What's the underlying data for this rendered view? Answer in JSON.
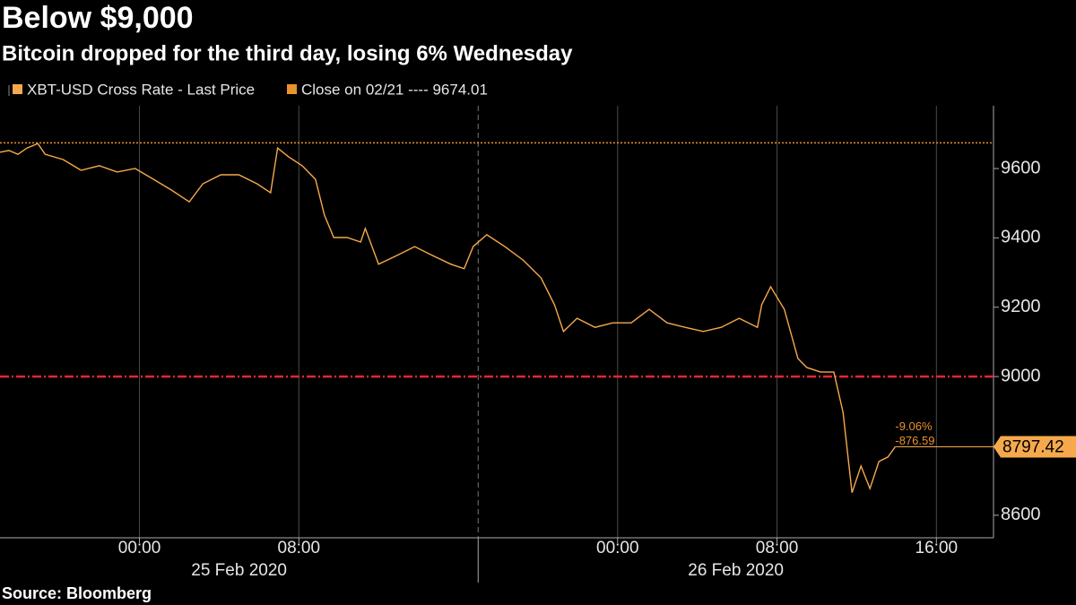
{
  "chart_data": {
    "type": "line",
    "title": "Below $9,000",
    "subtitle": "Bitcoin dropped for the third day, losing 6% Wednesday",
    "source": "Source: Bloomberg",
    "x": [
      "2020-02-24T17:00",
      "2020-02-24T17:27",
      "2020-02-24T17:54",
      "2020-02-24T18:21",
      "2020-02-24T18:54",
      "2020-02-24T19:16",
      "2020-02-24T20:10",
      "2020-02-24T21:04",
      "2020-02-24T21:59",
      "2020-02-24T22:53",
      "2020-02-24T23:47",
      "2020-02-25T00:42",
      "2020-02-25T01:36",
      "2020-02-25T02:30",
      "2020-02-25T03:11",
      "2020-02-25T04:05",
      "2020-02-25T04:59",
      "2020-02-25T05:54",
      "2020-02-25T06:35",
      "2020-02-25T06:56",
      "2020-02-25T07:29",
      "2020-02-25T08:10",
      "2020-02-25T08:50",
      "2020-02-25T09:17",
      "2020-02-25T09:45",
      "2020-02-25T10:25",
      "2020-02-25T11:06",
      "2020-02-25T11:20",
      "2020-02-25T12:00",
      "2020-02-25T12:55",
      "2020-02-25T13:49",
      "2020-02-25T14:43",
      "2020-02-25T15:38",
      "2020-02-25T16:18",
      "2020-02-25T16:45",
      "2020-02-25T17:26",
      "2020-02-25T18:20",
      "2020-02-25T19:15",
      "2020-02-25T20:09",
      "2020-02-25T20:50",
      "2020-02-25T21:17",
      "2020-02-25T21:58",
      "2020-02-25T22:52",
      "2020-02-25T23:46",
      "2020-02-26T00:41",
      "2020-02-26T01:35",
      "2020-02-26T02:29",
      "2020-02-26T03:23",
      "2020-02-26T04:18",
      "2020-02-26T05:12",
      "2020-02-26T06:06",
      "2020-02-26T07:01",
      "2020-02-26T07:14",
      "2020-02-26T07:41",
      "2020-02-26T08:22",
      "2020-02-26T09:03",
      "2020-02-26T09:30",
      "2020-02-26T10:11",
      "2020-02-26T10:51",
      "2020-02-26T11:19",
      "2020-02-26T11:46",
      "2020-02-26T12:13",
      "2020-02-26T12:40",
      "2020-02-26T13:07",
      "2020-02-26T13:34",
      "2020-02-26T13:56"
    ],
    "series": [
      {
        "name": "XBT-USD Cross Rate - Last Price",
        "color": "#f6a94c",
        "values": [
          9647,
          9652,
          9641,
          9659,
          9672,
          9641,
          9626,
          9595,
          9608,
          9590,
          9600,
          9569,
          9538,
          9504,
          9556,
          9582,
          9582,
          9556,
          9530,
          9659,
          9634,
          9608,
          9569,
          9466,
          9401,
          9401,
          9388,
          9427,
          9324,
          9349,
          9375,
          9349,
          9324,
          9311,
          9375,
          9409,
          9375,
          9336,
          9285,
          9207,
          9130,
          9168,
          9142,
          9155,
          9155,
          9194,
          9155,
          9142,
          9130,
          9142,
          9168,
          9142,
          9207,
          9259,
          9194,
          9052,
          9026,
          9013,
          9013,
          8897,
          8665,
          8742,
          8677,
          8755,
          8768,
          8797.42
        ]
      }
    ],
    "reference_lines": [
      {
        "label": "Close on 02/21 ---- 9674.01",
        "value": 9674.01,
        "color": "#e8922c",
        "style": "dotted"
      },
      {
        "value": 9000,
        "color": "#e5262f",
        "style": "dashdot"
      }
    ],
    "annotations": [
      "-9.06%",
      "-876.59"
    ],
    "xlim": [
      "2020-02-24T17:00",
      "2020-02-26T18:52"
    ],
    "xticks": [
      {
        "value": "2020-02-25T00:00",
        "label": "00:00"
      },
      {
        "value": "2020-02-25T08:00",
        "label": "08:00"
      },
      {
        "value": "2020-02-26T00:00",
        "label": "00:00"
      },
      {
        "value": "2020-02-26T08:00",
        "label": "08:00"
      },
      {
        "value": "2020-02-26T16:00",
        "label": "16:00"
      }
    ],
    "x_groups": [
      {
        "start": "2020-02-24T17:00",
        "label": "25 Feb 2020"
      },
      {
        "start": "2020-02-25T17:00",
        "label": "26 Feb 2020"
      }
    ],
    "ylim": [
      8535,
      9781
    ],
    "yticks": [
      8600,
      8800,
      9000,
      9200,
      9400,
      9600
    ],
    "grid": true
  }
}
